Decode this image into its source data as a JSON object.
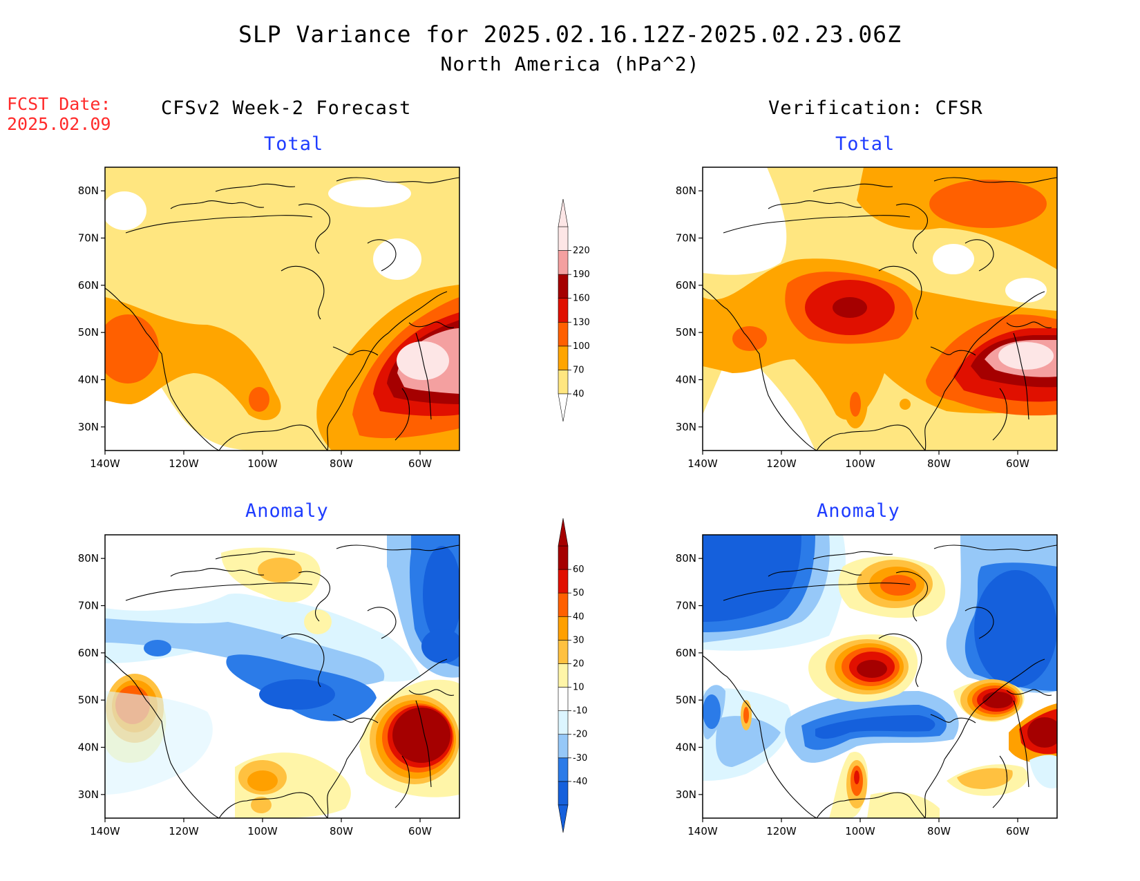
{
  "figure": {
    "title_line1": "SLP Variance for 2025.02.16.12Z-2025.02.23.06Z",
    "title_line2": "North America (hPa^2)",
    "fcst_label": "FCST Date:",
    "fcst_date": "2025.02.09",
    "left_column_title": "CFSv2 Week-2 Forecast",
    "right_column_title": "Verification: CFSR"
  },
  "panels": {
    "fcst_total": {
      "title": "Total",
      "field": "total"
    },
    "verif_total": {
      "title": "Total",
      "field": "total"
    },
    "fcst_anomaly": {
      "title": "Anomaly",
      "field": "anomaly"
    },
    "verif_anomaly": {
      "title": "Anomaly",
      "field": "anomaly"
    }
  },
  "map_axes": {
    "lon_ticks": [
      "140W",
      "120W",
      "100W",
      "80W",
      "60W"
    ],
    "lat_ticks": [
      "80N",
      "70N",
      "60N",
      "50N",
      "40N",
      "30N"
    ],
    "lon_range": [
      -140,
      -50
    ],
    "lat_range": [
      25,
      85
    ]
  },
  "colorbars": {
    "total": {
      "levels": [
        "40",
        "70",
        "100",
        "130",
        "160",
        "190",
        "220"
      ],
      "colors": [
        "#ffe680",
        "#ffa500",
        "#ff6000",
        "#e01000",
        "#a50000",
        "#f4a0a0",
        "#fde6e6"
      ],
      "below_color": "#ffffff"
    },
    "anomaly": {
      "levels": [
        "-40",
        "-30",
        "-20",
        "-10",
        "10",
        "20",
        "30",
        "40",
        "50",
        "60"
      ],
      "colors": [
        "#1560dc",
        "#2b7be8",
        "#96c8f8",
        "#dcf5ff",
        "#ffffff",
        "#fff5a8",
        "#ffc140",
        "#ffa000",
        "#ff6000",
        "#e11000",
        "#a50000"
      ]
    }
  }
}
